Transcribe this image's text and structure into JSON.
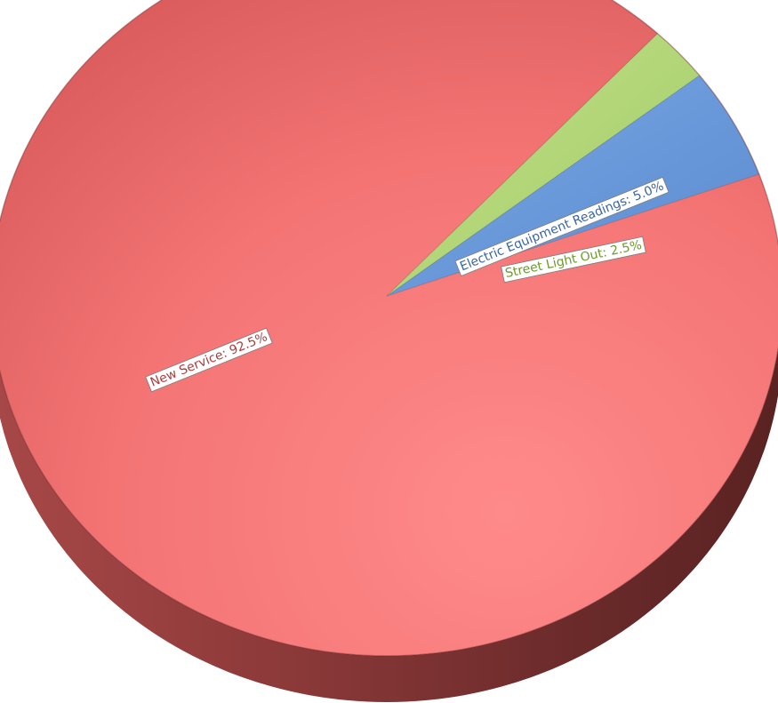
{
  "chart_data": {
    "type": "pie",
    "style": "3d",
    "title": "",
    "slices": [
      {
        "label": "New Service",
        "value": 92.5,
        "label_text": "New Service: 92.5%",
        "color": "#f47878",
        "text_color": "#b03c3c"
      },
      {
        "label": "Electric Equipment Readings",
        "value": 5.0,
        "label_text": "Electric Equipment Readings: 5.0%",
        "color": "#6699d8",
        "text_color": "#3a65a8"
      },
      {
        "label": "Street Light Out",
        "value": 2.5,
        "label_text": "Street Light Out: 2.5%",
        "color": "#acd46c",
        "text_color": "#6e9a2c"
      }
    ],
    "legend": "none"
  }
}
